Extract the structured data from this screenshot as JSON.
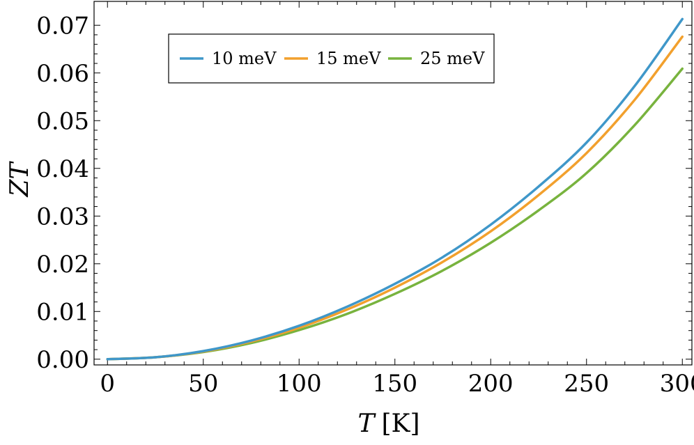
{
  "chart_data": {
    "type": "line",
    "xlabel": "T [K]",
    "xlabel_var": "T",
    "xlabel_unit": "[K]",
    "ylabel": "ZT",
    "xlim": [
      -7,
      305
    ],
    "ylim": [
      -0.0012,
      0.075
    ],
    "xticks": [
      0,
      50,
      100,
      150,
      200,
      250,
      300
    ],
    "yticks": [
      0.0,
      0.01,
      0.02,
      0.03,
      0.04,
      0.05,
      0.06,
      0.07
    ],
    "ytick_labels": [
      "0.00",
      "0.01",
      "0.02",
      "0.03",
      "0.04",
      "0.05",
      "0.06",
      "0.07"
    ],
    "grid": false,
    "legend_position": "top-left",
    "series": [
      {
        "name": "10 meV",
        "color": "#3f97c9",
        "x": [
          0,
          25,
          50,
          75,
          100,
          125,
          150,
          175,
          200,
          225,
          250,
          275,
          300
        ],
        "y": [
          0,
          0.0004,
          0.0017,
          0.0039,
          0.007,
          0.011,
          0.0158,
          0.0214,
          0.0282,
          0.0362,
          0.0454,
          0.0572,
          0.0713
        ]
      },
      {
        "name": "15 meV",
        "color": "#f2a02d",
        "x": [
          0,
          25,
          50,
          75,
          100,
          125,
          150,
          175,
          200,
          225,
          250,
          275,
          300
        ],
        "y": [
          0,
          0.0004,
          0.0016,
          0.0037,
          0.0066,
          0.0104,
          0.015,
          0.0204,
          0.0268,
          0.0344,
          0.0432,
          0.0543,
          0.0676
        ]
      },
      {
        "name": "25 meV",
        "color": "#78b33e",
        "x": [
          0,
          25,
          50,
          75,
          100,
          125,
          150,
          175,
          200,
          225,
          250,
          275,
          300
        ],
        "y": [
          0,
          0.0004,
          0.0015,
          0.0034,
          0.0061,
          0.0095,
          0.0137,
          0.0186,
          0.0244,
          0.0312,
          0.039,
          0.049,
          0.0609
        ]
      }
    ]
  }
}
